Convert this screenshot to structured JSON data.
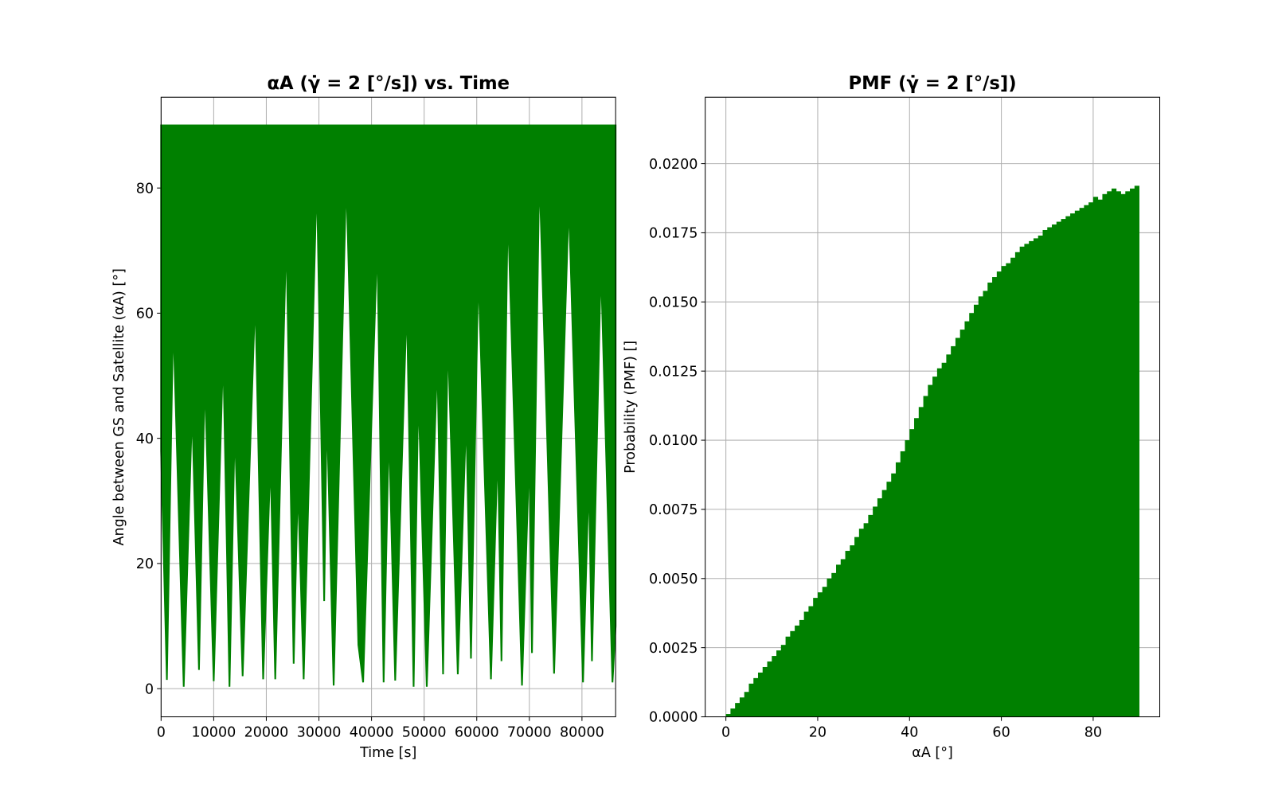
{
  "chart_data": [
    {
      "type": "line",
      "title": "αA (γ̇ = 2 [°/s]) vs. Time",
      "xlabel": "Time [s]",
      "ylabel": "Angle between GS and Satellite (αA) [°]",
      "color": "#008000",
      "grid": true,
      "fill_to": 90,
      "x": [
        0,
        1100,
        2300,
        4300,
        5900,
        7200,
        8300,
        10000,
        11800,
        13000,
        14000,
        15500,
        17900,
        19400,
        20800,
        21700,
        23800,
        25200,
        26000,
        27100,
        29600,
        31000,
        31500,
        32800,
        35200,
        37500,
        38400,
        41100,
        42300,
        43300,
        44500,
        46700,
        48000,
        48900,
        50500,
        52500,
        53600,
        54500,
        56400,
        58000,
        58900,
        60300,
        62700,
        64000,
        64700,
        65900,
        68600,
        70000,
        70500,
        71900,
        74700,
        77500,
        80200,
        81300,
        81900,
        83600,
        85800,
        86400
      ],
      "values": [
        38,
        1.4,
        59.4,
        0.3,
        45,
        3,
        50,
        1.2,
        54,
        0.3,
        42,
        2,
        63,
        1.5,
        37,
        1.5,
        73,
        4,
        33,
        1.5,
        82,
        14,
        45,
        0.5,
        82,
        7,
        1,
        72,
        1,
        42,
        1.3,
        62,
        0.3,
        48,
        0.3,
        53,
        2.3,
        57,
        2.3,
        44,
        4.8,
        67,
        1.5,
        39,
        4.4,
        77,
        0.5,
        38,
        5.7,
        83,
        2.4,
        78,
        1,
        34,
        4.4,
        68,
        1,
        10
      ],
      "xlim": [
        0,
        86400
      ],
      "ylim": [
        -4.5,
        94.5
      ],
      "xticks": [
        0,
        10000,
        20000,
        30000,
        40000,
        50000,
        60000,
        70000,
        80000
      ],
      "yticks": [
        0,
        20,
        40,
        60,
        80
      ]
    },
    {
      "type": "histogram",
      "title": "PMF (γ̇ = 2 [°/s])",
      "xlabel": "αA [°]",
      "ylabel": "Probability (PMF) []",
      "color": "#008000",
      "grid": true,
      "bins": [
        0,
        1,
        2,
        3,
        4,
        5,
        6,
        7,
        8,
        9,
        10,
        11,
        12,
        13,
        14,
        15,
        16,
        17,
        18,
        19,
        20,
        21,
        22,
        23,
        24,
        25,
        26,
        27,
        28,
        29,
        30,
        31,
        32,
        33,
        34,
        35,
        36,
        37,
        38,
        39,
        40,
        41,
        42,
        43,
        44,
        45,
        46,
        47,
        48,
        49,
        50,
        51,
        52,
        53,
        54,
        55,
        56,
        57,
        58,
        59,
        60,
        61,
        62,
        63,
        64,
        65,
        66,
        67,
        68,
        69,
        70,
        71,
        72,
        73,
        74,
        75,
        76,
        77,
        78,
        79,
        80,
        81,
        82,
        83,
        84,
        85,
        86,
        87,
        88,
        89,
        90
      ],
      "values": [
        0.0001,
        0.0003,
        0.0005,
        0.0007,
        0.0009,
        0.0012,
        0.0014,
        0.0016,
        0.0018,
        0.002,
        0.0022,
        0.0024,
        0.0026,
        0.0029,
        0.0031,
        0.0033,
        0.0035,
        0.0038,
        0.004,
        0.0043,
        0.0045,
        0.0047,
        0.005,
        0.0052,
        0.0055,
        0.0057,
        0.006,
        0.0062,
        0.0065,
        0.0068,
        0.007,
        0.0073,
        0.0076,
        0.0079,
        0.0082,
        0.0085,
        0.0088,
        0.0092,
        0.0096,
        0.01,
        0.0104,
        0.0108,
        0.0112,
        0.0116,
        0.012,
        0.0123,
        0.0126,
        0.0128,
        0.0131,
        0.0134,
        0.0137,
        0.014,
        0.0143,
        0.0146,
        0.0149,
        0.0152,
        0.0154,
        0.0157,
        0.0159,
        0.0161,
        0.0163,
        0.0164,
        0.0166,
        0.0168,
        0.017,
        0.0171,
        0.0172,
        0.0173,
        0.0174,
        0.0176,
        0.0177,
        0.0178,
        0.0179,
        0.018,
        0.0181,
        0.0182,
        0.0183,
        0.0184,
        0.0185,
        0.0186,
        0.0188,
        0.0187,
        0.0189,
        0.019,
        0.0191,
        0.019,
        0.0189,
        0.019,
        0.0191,
        0.0192
      ],
      "xlim": [
        -4.5,
        94.5
      ],
      "ylim": [
        0,
        0.0224
      ],
      "xticks": [
        0,
        20,
        40,
        60,
        80
      ],
      "yticks": [
        {
          "value": 0,
          "label": "0.0000"
        },
        {
          "value": 0.0025,
          "label": "0.0025"
        },
        {
          "value": 0.005,
          "label": "0.0050"
        },
        {
          "value": 0.0075,
          "label": "0.0075"
        },
        {
          "value": 0.01,
          "label": "0.0100"
        },
        {
          "value": 0.0125,
          "label": "0.0125"
        },
        {
          "value": 0.015,
          "label": "0.0150"
        },
        {
          "value": 0.0175,
          "label": "0.0175"
        },
        {
          "value": 0.02,
          "label": "0.0200"
        }
      ]
    }
  ]
}
